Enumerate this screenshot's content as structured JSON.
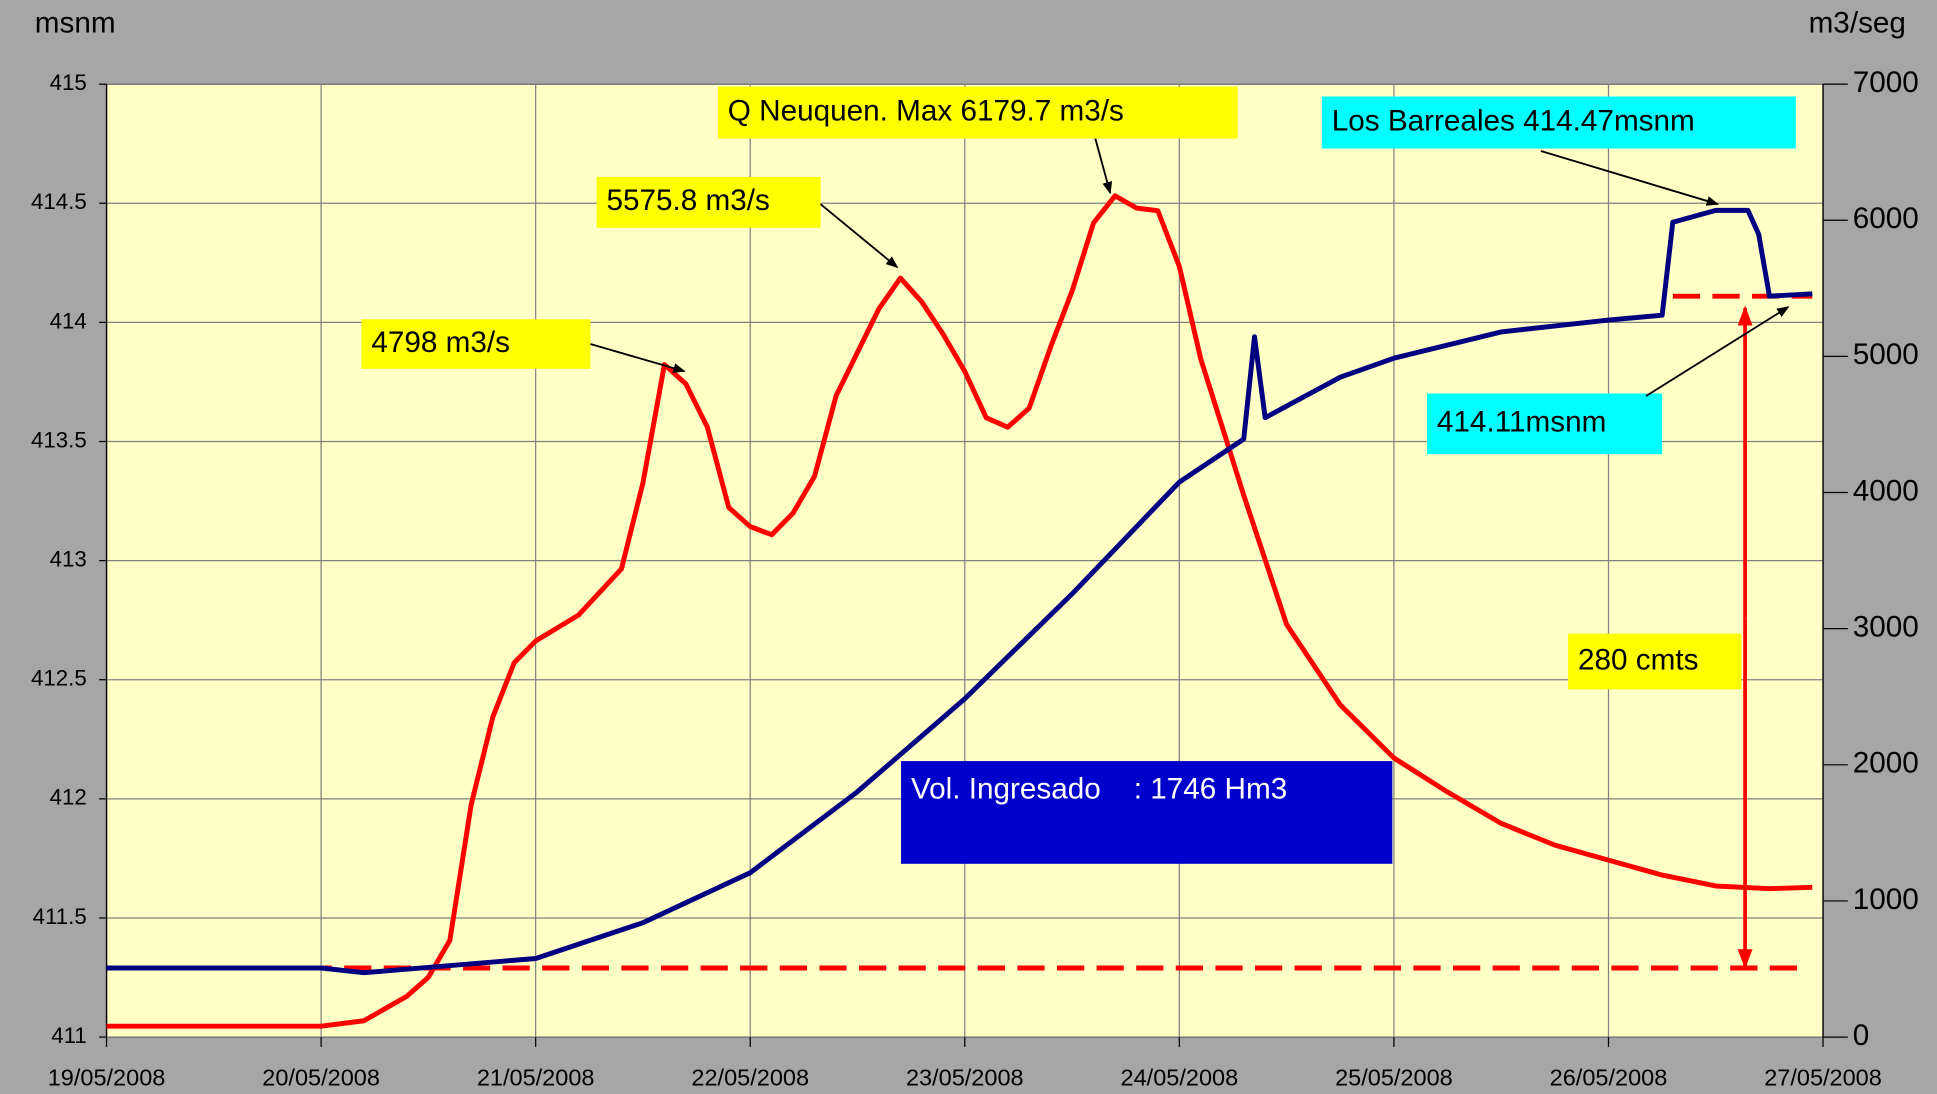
{
  "chart_data": {
    "type": "line",
    "y_label": "msnm",
    "y2_label": "m3/seg",
    "xlim": [
      0,
      8
    ],
    "xticks": [
      {
        "value": 0,
        "label": "19/05/2008"
      },
      {
        "value": 1,
        "label": "20/05/2008"
      },
      {
        "value": 2,
        "label": "21/05/2008"
      },
      {
        "value": 3,
        "label": "22/05/2008"
      },
      {
        "value": 4,
        "label": "23/05/2008"
      },
      {
        "value": 5,
        "label": "24/05/2008"
      },
      {
        "value": 6,
        "label": "25/05/2008"
      },
      {
        "value": 7,
        "label": "26/05/2008"
      },
      {
        "value": 8,
        "label": "27/05/2008"
      }
    ],
    "ylim": [
      411,
      415
    ],
    "yticks": [
      411,
      411.5,
      412,
      412.5,
      413,
      413.5,
      414,
      414.5,
      415
    ],
    "y2lim": [
      0,
      7000
    ],
    "y2ticks": [
      0,
      1000,
      2000,
      3000,
      4000,
      5000,
      6000,
      7000
    ],
    "grid": true,
    "series": [
      {
        "name": "Q Neuquen",
        "color": "#ff0000",
        "axis": "y2",
        "x": [
          0,
          0.5,
          1,
          1.2,
          1.4,
          1.5,
          1.6,
          1.7,
          1.8,
          1.9,
          2,
          2.2,
          2.4,
          2.5,
          2.6,
          2.7,
          2.8,
          2.9,
          3,
          3.1,
          3.2,
          3.3,
          3.4,
          3.5,
          3.6,
          3.7,
          3.8,
          3.9,
          4,
          4.1,
          4.2,
          4.3,
          4.4,
          4.5,
          4.6,
          4.7,
          4.8,
          4.9,
          5,
          5.1,
          5.2,
          5.3,
          5.5,
          5.75,
          6,
          6.25,
          6.5,
          6.75,
          7,
          7.25,
          7.5,
          7.75,
          7.95
        ],
        "values": [
          80,
          80,
          80,
          120,
          300,
          440,
          710,
          1710,
          2350,
          2750,
          2910,
          3100,
          3440,
          4070,
          4940,
          4798,
          4480,
          3890,
          3750,
          3690,
          3850,
          4120,
          4710,
          5030,
          5350,
          5575.8,
          5400,
          5160,
          4890,
          4550,
          4480,
          4620,
          5070,
          5480,
          5980,
          6179.7,
          6090,
          6070,
          5660,
          4980,
          4480,
          3980,
          3030,
          2440,
          2050,
          1800,
          1570,
          1410,
          1300,
          1190,
          1110,
          1090,
          1100
        ]
      },
      {
        "name": "Los Barreales",
        "color": "#000080",
        "x": [
          0,
          1,
          1.2,
          2,
          2.5,
          3,
          3.5,
          4,
          4.5,
          5,
          5.3,
          5.35,
          5.4,
          5.75,
          6,
          6.5,
          7,
          7.25,
          7.3,
          7.5,
          7.65,
          7.7,
          7.75,
          7.95
        ],
        "values": [
          411.29,
          411.29,
          411.27,
          411.33,
          411.48,
          411.69,
          412.03,
          412.42,
          412.86,
          413.33,
          413.51,
          413.94,
          413.6,
          413.77,
          413.85,
          413.96,
          414.01,
          414.03,
          414.42,
          414.47,
          414.47,
          414.37,
          414.11,
          414.12
        ]
      }
    ],
    "reference_lines": [
      {
        "y": 411.29,
        "x": [
          0,
          7.9
        ],
        "color": "#ff0000"
      },
      {
        "y": 414.11,
        "x": [
          7.3,
          7.95
        ],
        "color": "#ff0000"
      }
    ],
    "annotations": [
      {
        "text": "4798 m3/s",
        "background": "#ffff00"
      },
      {
        "text": "5575.8 m3/s",
        "background": "#ffff00"
      },
      {
        "text": "Q Neuquen. Max 6179.7 m3/s",
        "background": "#ffff00"
      },
      {
        "text": "Los Barreales 414.47msnm",
        "background": "#00ffff"
      },
      {
        "text": "414.11msnm",
        "background": "#00ffff"
      },
      {
        "text": "280 cmts",
        "background": "#ffff00"
      },
      {
        "text": "Vol. Ingresado    : 1746 Hm3",
        "background": "#0000cc"
      }
    ]
  }
}
